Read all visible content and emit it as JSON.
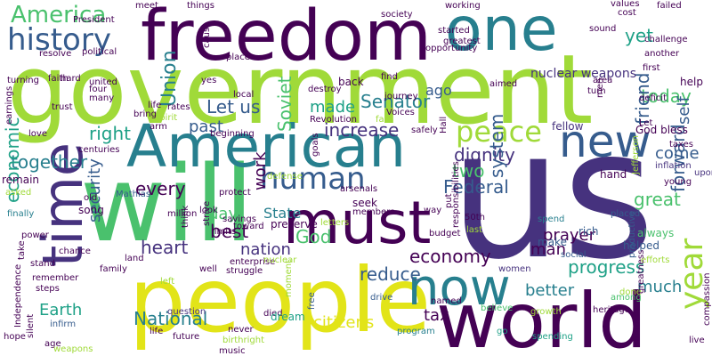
{
  "title": "Word cloud",
  "palette": {
    "dark_purple": "#440154",
    "indigo": "#46327e",
    "blue": "#365c8d",
    "teal_blue": "#277f8e",
    "teal": "#1fa187",
    "green": "#4ac16d",
    "lime": "#a0da39",
    "yellow": "#fde725"
  },
  "words": [
    {
      "text": "government",
      "color": "#a0da39"
    },
    {
      "text": "us",
      "color": "#46327e"
    },
    {
      "text": "will",
      "color": "#4ac16d"
    },
    {
      "text": "people",
      "color": "#e2e418"
    },
    {
      "text": "freedom",
      "color": "#440154"
    },
    {
      "text": "world",
      "color": "#440154"
    },
    {
      "text": "one",
      "color": "#277f8e"
    },
    {
      "text": "American",
      "color": "#277f8e"
    },
    {
      "text": "must",
      "color": "#440154"
    },
    {
      "text": "time",
      "color": "#46327e"
    },
    {
      "text": "now",
      "color": "#277f8e"
    },
    {
      "text": "new",
      "color": "#365c8d"
    },
    {
      "text": "history",
      "color": "#365c8d"
    },
    {
      "text": "human",
      "color": "#365c8d"
    },
    {
      "text": "peace",
      "color": "#a0da39"
    },
    {
      "text": "year",
      "color": "#a0da39"
    },
    {
      "text": "America",
      "color": "#4ac16d"
    },
    {
      "text": "Let us",
      "color": "#365c8d"
    },
    {
      "text": "Senator",
      "color": "#277f8e"
    },
    {
      "text": "today",
      "color": "#4ac16d"
    },
    {
      "text": "yet",
      "color": "#1fa187"
    },
    {
      "text": "ago",
      "color": "#365c8d"
    },
    {
      "text": "Union",
      "color": "#277f8e"
    },
    {
      "text": "made",
      "color": "#1fa187"
    },
    {
      "text": "Soviet",
      "color": "#4ac16d"
    },
    {
      "text": "past",
      "color": "#365c8d"
    },
    {
      "text": "increase",
      "color": "#46327e"
    },
    {
      "text": "right",
      "color": "#1fa187"
    },
    {
      "text": "together",
      "color": "#277f8e"
    },
    {
      "text": "friend",
      "color": "#365c8d"
    },
    {
      "text": "self",
      "color": "#365c8d"
    },
    {
      "text": "come",
      "color": "#365c8d"
    },
    {
      "text": "dignity",
      "color": "#46327e"
    },
    {
      "text": "two",
      "color": "#4ac16d"
    },
    {
      "text": "every",
      "color": "#440154"
    },
    {
      "text": "Federal",
      "color": "#365c8d"
    },
    {
      "text": "system",
      "color": "#365c8d"
    },
    {
      "text": "work",
      "color": "#440154"
    },
    {
      "text": "great",
      "color": "#4ac16d"
    },
    {
      "text": "forward",
      "color": "#365c8d"
    },
    {
      "text": "economic",
      "color": "#1fa187"
    },
    {
      "text": "day",
      "color": "#4ac16d"
    },
    {
      "text": "State",
      "color": "#277f8e"
    },
    {
      "text": "God",
      "color": "#4ac16d"
    },
    {
      "text": "prayer",
      "color": "#440154"
    },
    {
      "text": "best",
      "color": "#440154"
    },
    {
      "text": "security",
      "color": "#365c8d"
    },
    {
      "text": "heart",
      "color": "#46327e"
    },
    {
      "text": "nation",
      "color": "#46327e"
    },
    {
      "text": "economy",
      "color": "#440154"
    },
    {
      "text": "man",
      "color": "#440154"
    },
    {
      "text": "progress",
      "color": "#1fa187"
    },
    {
      "text": "reduce",
      "color": "#365c8d"
    },
    {
      "text": "much",
      "color": "#277f8e"
    },
    {
      "text": "better",
      "color": "#277f8e"
    },
    {
      "text": "Earth",
      "color": "#1fa187"
    },
    {
      "text": "National",
      "color": "#277f8e"
    },
    {
      "text": "citizens",
      "color": "#e2e418"
    },
    {
      "text": "tax",
      "color": "#440154"
    },
    {
      "text": "nuclear weapons",
      "color": "#46327e"
    },
    {
      "text": "fellow",
      "color": "#46327e"
    },
    {
      "text": "God bless",
      "color": "#440154"
    },
    {
      "text": "Jefferson",
      "color": "#a0da39"
    },
    {
      "text": "taxes",
      "color": "#440154"
    },
    {
      "text": "inflation",
      "color": "#46327e"
    },
    {
      "text": "upon",
      "color": "#46327e"
    },
    {
      "text": "help",
      "color": "#440154"
    },
    {
      "text": "hand",
      "color": "#440154"
    },
    {
      "text": "placed",
      "color": "#365c8d"
    },
    {
      "text": "always",
      "color": "#4ac16d"
    },
    {
      "text": "rich",
      "color": "#365c8d"
    },
    {
      "text": "helped",
      "color": "#365c8d"
    },
    {
      "text": "spend",
      "color": "#277f8e"
    },
    {
      "text": "make",
      "color": "#365c8d"
    },
    {
      "text": "efforts",
      "color": "#a0da39"
    },
    {
      "text": "social",
      "color": "#365c8d"
    },
    {
      "text": "productive",
      "color": "#365c8d"
    },
    {
      "text": "heritage",
      "color": "#440154"
    },
    {
      "text": "growth",
      "color": "#a0da39"
    },
    {
      "text": "among",
      "color": "#4ac16d"
    },
    {
      "text": "done",
      "color": "#a0da39"
    },
    {
      "text": "spending",
      "color": "#1fa187"
    },
    {
      "text": "go",
      "color": "#1fa187"
    },
    {
      "text": "women",
      "color": "#46327e"
    },
    {
      "text": "believe",
      "color": "#4ac16d"
    },
    {
      "text": "named",
      "color": "#440154"
    },
    {
      "text": "program",
      "color": "#277f8e"
    },
    {
      "text": "moment",
      "color": "#a0da39"
    },
    {
      "text": "died",
      "color": "#440154"
    },
    {
      "text": "drive",
      "color": "#365c8d"
    },
    {
      "text": "free",
      "color": "#365c8d"
    },
    {
      "text": "dream",
      "color": "#1fa187"
    },
    {
      "text": "music",
      "color": "#440154"
    },
    {
      "text": "birthright",
      "color": "#a0da39"
    },
    {
      "text": "never",
      "color": "#440154"
    },
    {
      "text": "future",
      "color": "#440154"
    },
    {
      "text": "life",
      "color": "#440154"
    },
    {
      "text": "question",
      "color": "#46327e"
    },
    {
      "text": "age",
      "color": "#440154"
    },
    {
      "text": "infirm",
      "color": "#365c8d"
    },
    {
      "text": "weapons",
      "color": "#a0da39"
    },
    {
      "text": "hope",
      "color": "#440154"
    },
    {
      "text": "silent",
      "color": "#440154"
    },
    {
      "text": "steps",
      "color": "#440154"
    },
    {
      "text": "remember",
      "color": "#440154"
    },
    {
      "text": "left",
      "color": "#a0da39"
    },
    {
      "text": "stand",
      "color": "#440154"
    },
    {
      "text": "finally",
      "color": "#277f8e"
    },
    {
      "text": "power",
      "color": "#440154"
    },
    {
      "text": "asked",
      "color": "#a0da39"
    },
    {
      "text": "remain",
      "color": "#440154"
    },
    {
      "text": "song",
      "color": "#440154"
    },
    {
      "text": "Mathias",
      "color": "#365c8d"
    },
    {
      "text": "old",
      "color": "#440154"
    },
    {
      "text": "million",
      "color": "#440154"
    },
    {
      "text": "savings",
      "color": "#440154"
    },
    {
      "text": "limits",
      "color": "#440154"
    },
    {
      "text": "strive",
      "color": "#440154"
    },
    {
      "text": "toward",
      "color": "#440154"
    },
    {
      "text": "think",
      "color": "#440154"
    },
    {
      "text": "look",
      "color": "#440154"
    },
    {
      "text": "family",
      "color": "#440154"
    },
    {
      "text": "well",
      "color": "#440154"
    },
    {
      "text": "struggle",
      "color": "#440154"
    },
    {
      "text": "land",
      "color": "#440154"
    },
    {
      "text": "enterprise",
      "color": "#440154"
    },
    {
      "text": "nuclear",
      "color": "#a0da39"
    },
    {
      "text": "chance",
      "color": "#440154"
    },
    {
      "text": "preserve",
      "color": "#440154"
    },
    {
      "text": "members",
      "color": "#440154"
    },
    {
      "text": "letters",
      "color": "#a0da39"
    },
    {
      "text": "way",
      "color": "#440154"
    },
    {
      "text": "put",
      "color": "#440154"
    },
    {
      "text": "responsibilities",
      "color": "#440154"
    },
    {
      "text": "50th",
      "color": "#440154"
    },
    {
      "text": "last",
      "color": "#a0da39"
    },
    {
      "text": "budget",
      "color": "#440154"
    },
    {
      "text": "seek",
      "color": "#440154"
    },
    {
      "text": "arsenals",
      "color": "#440154"
    },
    {
      "text": "protect",
      "color": "#440154"
    },
    {
      "text": "defense",
      "color": "#a0da39"
    },
    {
      "text": "goals",
      "color": "#440154"
    },
    {
      "text": "Hall",
      "color": "#440154"
    },
    {
      "text": "safely",
      "color": "#440154"
    },
    {
      "text": "Voices",
      "color": "#440154"
    },
    {
      "text": "fair",
      "color": "#a0da39"
    },
    {
      "text": "Revolution",
      "color": "#440154"
    },
    {
      "text": "beginning",
      "color": "#440154"
    },
    {
      "text": "arm",
      "color": "#440154"
    },
    {
      "text": "centuries",
      "color": "#440154"
    },
    {
      "text": "spirit",
      "color": "#a0da39"
    },
    {
      "text": "rates",
      "color": "#440154"
    },
    {
      "text": "bring",
      "color": "#440154"
    },
    {
      "text": "life",
      "color": "#440154"
    },
    {
      "text": "yes",
      "color": "#440154"
    },
    {
      "text": "cause",
      "color": "#440154"
    },
    {
      "text": "local",
      "color": "#440154"
    },
    {
      "text": "destroy",
      "color": "#440154"
    },
    {
      "text": "back",
      "color": "#440154"
    },
    {
      "text": "find",
      "color": "#440154"
    },
    {
      "text": "journey",
      "color": "#440154"
    },
    {
      "text": "area",
      "color": "#440154"
    },
    {
      "text": "turn",
      "color": "#440154"
    },
    {
      "text": "aimed",
      "color": "#440154"
    },
    {
      "text": "men",
      "color": "#440154"
    },
    {
      "text": "deficit",
      "color": "#440154"
    },
    {
      "text": "first",
      "color": "#440154"
    },
    {
      "text": "another",
      "color": "#440154"
    },
    {
      "text": "challenge",
      "color": "#440154"
    },
    {
      "text": "failed",
      "color": "#440154"
    },
    {
      "text": "values",
      "color": "#440154"
    },
    {
      "text": "cost",
      "color": "#440154"
    },
    {
      "text": "working",
      "color": "#440154"
    },
    {
      "text": "started",
      "color": "#440154"
    },
    {
      "text": "greatest",
      "color": "#440154"
    },
    {
      "text": "sound",
      "color": "#440154"
    },
    {
      "text": "opportunity",
      "color": "#440154"
    },
    {
      "text": "society",
      "color": "#440154"
    },
    {
      "text": "meet",
      "color": "#440154"
    },
    {
      "text": "things",
      "color": "#440154"
    },
    {
      "text": "President",
      "color": "#440154"
    },
    {
      "text": "political",
      "color": "#440154"
    },
    {
      "text": "faith",
      "color": "#440154"
    },
    {
      "text": "turning",
      "color": "#440154"
    },
    {
      "text": "hard",
      "color": "#440154"
    },
    {
      "text": "united",
      "color": "#440154"
    },
    {
      "text": "four",
      "color": "#440154"
    },
    {
      "text": "many",
      "color": "#440154"
    },
    {
      "text": "trust",
      "color": "#440154"
    },
    {
      "text": "love",
      "color": "#440154"
    },
    {
      "text": "earnings",
      "color": "#440154"
    },
    {
      "text": "resolve",
      "color": "#440154"
    },
    {
      "text": "place",
      "color": "#440154"
    },
    {
      "text": "Let",
      "color": "#440154"
    },
    {
      "text": "young",
      "color": "#440154"
    },
    {
      "text": "greatness",
      "color": "#440154"
    },
    {
      "text": "compassion",
      "color": "#440154"
    },
    {
      "text": "Independence",
      "color": "#440154"
    },
    {
      "text": "take",
      "color": "#440154"
    },
    {
      "text": "live",
      "color": "#440154"
    },
    {
      "text": "number",
      "color": "#440154"
    }
  ]
}
